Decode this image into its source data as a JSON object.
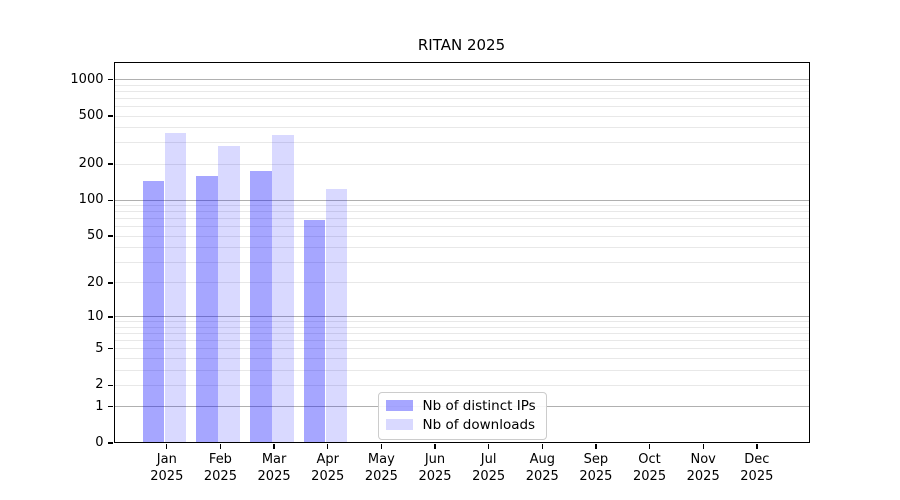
{
  "chart_data": {
    "type": "bar",
    "title": "RITAN 2025",
    "categories": [
      "Jan 2025",
      "Feb 2025",
      "Mar 2025",
      "Apr 2025",
      "May 2025",
      "Jun 2025",
      "Jul 2025",
      "Aug 2025",
      "Sep 2025",
      "Oct 2025",
      "Nov 2025",
      "Dec 2025"
    ],
    "series": [
      {
        "name": "Nb of distinct IPs",
        "color": "rgba(0,0,255,0.35)",
        "values": [
          145,
          160,
          175,
          68,
          null,
          null,
          null,
          null,
          null,
          null,
          null,
          null
        ]
      },
      {
        "name": "Nb of downloads",
        "color": "rgba(0,0,255,0.15)",
        "values": [
          365,
          280,
          350,
          125,
          null,
          null,
          null,
          null,
          null,
          null,
          null,
          null
        ]
      }
    ],
    "yscale": "log1p",
    "yticks": [
      0,
      1,
      2,
      5,
      10,
      20,
      50,
      100,
      200,
      500,
      1000
    ],
    "ylim": [
      0,
      1400
    ],
    "grid": "both",
    "legend_position": "lower center inside"
  },
  "colors": {
    "background": "#ffffff",
    "spine": "#000000",
    "grid_major": "#b0b0b0",
    "grid_minor": "#e8e8e8",
    "legend_border": "#cccccc"
  }
}
